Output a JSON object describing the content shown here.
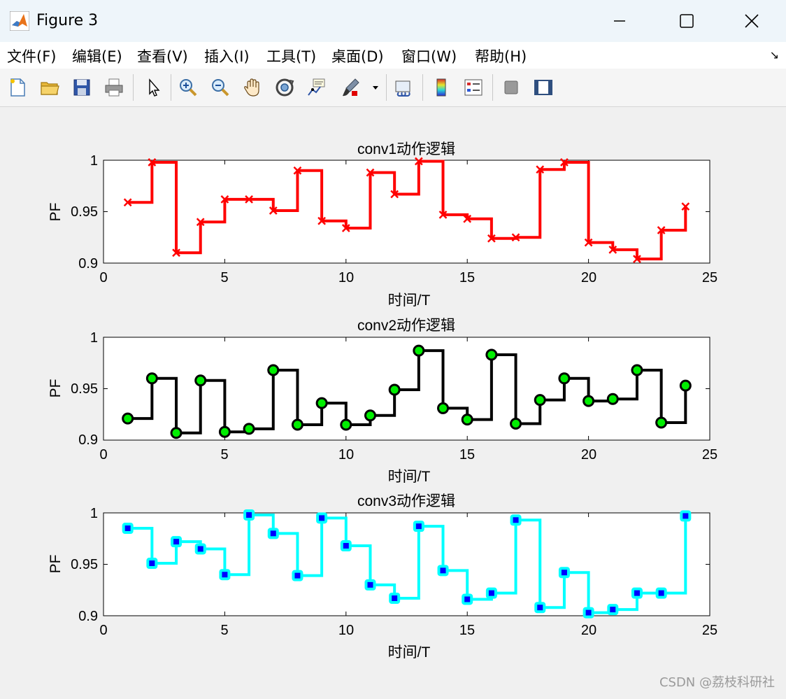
{
  "window": {
    "title": "Figure 3"
  },
  "menu": {
    "items": [
      "文件(F)",
      "编辑(E)",
      "查看(V)",
      "插入(I)",
      "工具(T)",
      "桌面(D)",
      "窗口(W)",
      "帮助(H)"
    ]
  },
  "toolbar": {
    "icons": [
      "new-file-icon",
      "open-folder-icon",
      "save-icon",
      "print-icon",
      "pointer-icon",
      "zoom-in-icon",
      "zoom-out-icon",
      "pan-hand-icon",
      "rotate-3d-icon",
      "data-cursor-icon",
      "brush-icon",
      "brush-dropdown-icon",
      "link-plot-icon",
      "colorbar-icon",
      "legend-icon",
      "hide-plot-tools-icon",
      "show-plot-tools-icon"
    ]
  },
  "watermark": "CSDN @荔枝科研社",
  "colors": {
    "conv1_line": "#ff0000",
    "conv2_line": "#000000",
    "conv2_marker": "#00ee00",
    "conv3_line": "#00ffff",
    "conv3_marker": "#0000ff"
  },
  "chart_data": [
    {
      "type": "line",
      "style": "stairs",
      "title": "conv1动作逻辑",
      "xlabel": "时间/T",
      "ylabel": "PF",
      "xlim": [
        0,
        25
      ],
      "ylim": [
        0.9,
        1
      ],
      "xticks": [
        "0",
        "5",
        "10",
        "15",
        "20",
        "25"
      ],
      "yticks": [
        "0.9",
        "0.95",
        "1"
      ],
      "marker": "x",
      "x": [
        1,
        2,
        3,
        4,
        5,
        6,
        7,
        8,
        9,
        10,
        11,
        12,
        13,
        14,
        15,
        16,
        17,
        18,
        19,
        20,
        21,
        22,
        23,
        24
      ],
      "values": [
        0.959,
        0.998,
        0.91,
        0.94,
        0.962,
        0.962,
        0.951,
        0.99,
        0.941,
        0.934,
        0.988,
        0.967,
        0.999,
        0.947,
        0.943,
        0.924,
        0.925,
        0.991,
        0.998,
        0.92,
        0.913,
        0.904,
        0.932,
        0.955
      ]
    },
    {
      "type": "line",
      "style": "stairs",
      "title": "conv2动作逻辑",
      "xlabel": "时间/T",
      "ylabel": "PF",
      "xlim": [
        0,
        25
      ],
      "ylim": [
        0.9,
        1
      ],
      "xticks": [
        "0",
        "5",
        "10",
        "15",
        "20",
        "25"
      ],
      "yticks": [
        "0.9",
        "0.95",
        "1"
      ],
      "marker": "circle",
      "x": [
        1,
        2,
        3,
        4,
        5,
        6,
        7,
        8,
        9,
        10,
        11,
        12,
        13,
        14,
        15,
        16,
        17,
        18,
        19,
        20,
        21,
        22,
        23,
        24
      ],
      "values": [
        0.921,
        0.96,
        0.907,
        0.958,
        0.908,
        0.911,
        0.968,
        0.915,
        0.936,
        0.915,
        0.924,
        0.949,
        0.987,
        0.931,
        0.92,
        0.983,
        0.916,
        0.939,
        0.96,
        0.938,
        0.94,
        0.968,
        0.917,
        0.953
      ]
    },
    {
      "type": "line",
      "style": "stairs",
      "title": "conv3动作逻辑",
      "xlabel": "时间/T",
      "ylabel": "PF",
      "xlim": [
        0,
        25
      ],
      "ylim": [
        0.9,
        1
      ],
      "xticks": [
        "0",
        "5",
        "10",
        "15",
        "20",
        "25"
      ],
      "yticks": [
        "0.9",
        "0.95",
        "1"
      ],
      "marker": "square",
      "x": [
        1,
        2,
        3,
        4,
        5,
        6,
        7,
        8,
        9,
        10,
        11,
        12,
        13,
        14,
        15,
        16,
        17,
        18,
        19,
        20,
        21,
        22,
        23,
        24
      ],
      "values": [
        0.985,
        0.951,
        0.972,
        0.965,
        0.94,
        0.998,
        0.98,
        0.939,
        0.995,
        0.968,
        0.93,
        0.917,
        0.987,
        0.944,
        0.916,
        0.922,
        0.993,
        0.908,
        0.942,
        0.903,
        0.906,
        0.922,
        0.922,
        0.997
      ]
    }
  ]
}
